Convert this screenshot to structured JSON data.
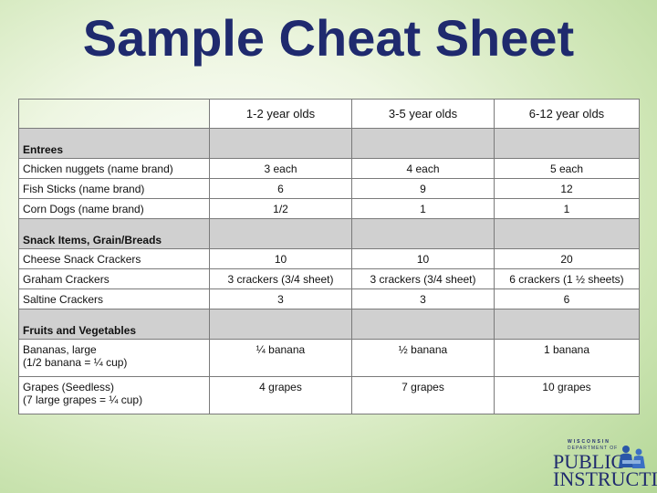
{
  "title": "Sample Cheat Sheet",
  "columns": [
    "1-2 year olds",
    "3-5 year olds",
    "6-12 year olds"
  ],
  "sections": [
    {
      "name": "Entrees",
      "rows": [
        {
          "item": [
            "Chicken nuggets (name brand)"
          ],
          "values": [
            "3 each",
            "4 each",
            "5 each"
          ]
        },
        {
          "item": [
            "Fish Sticks (name brand)"
          ],
          "values": [
            "6",
            "9",
            "12"
          ]
        },
        {
          "item": [
            "Corn Dogs (name brand)"
          ],
          "values": [
            "1/2",
            "1",
            "1"
          ]
        }
      ]
    },
    {
      "name": "Snack Items, Grain/Breads",
      "rows": [
        {
          "item": [
            "Cheese Snack Crackers"
          ],
          "values": [
            "10",
            "10",
            "20"
          ]
        },
        {
          "item": [
            "Graham Crackers"
          ],
          "values": [
            "3 crackers (3/4 sheet)",
            "3 crackers (3/4 sheet)",
            "6 crackers (1 ½ sheets)"
          ]
        },
        {
          "item": [
            "Saltine Crackers"
          ],
          "values": [
            "3",
            "3",
            "6"
          ]
        }
      ]
    },
    {
      "name": "Fruits and Vegetables",
      "rows": [
        {
          "item": [
            "Bananas, large",
            "(1/2 banana = ¼ cup)"
          ],
          "values": [
            "¼ banana",
            "½ banana",
            "1 banana"
          ]
        },
        {
          "item": [
            "Grapes (Seedless)",
            "(7 large grapes = ¼ cup)"
          ],
          "values": [
            "4 grapes",
            "7 grapes",
            "10 grapes"
          ]
        }
      ]
    }
  ],
  "logo": {
    "line_top": "WISCONSIN",
    "line_dept": "DEPARTMENT OF",
    "line_1": "PUBLIC",
    "line_2": "INSTRUCTION",
    "color": "#1f2a6e"
  }
}
